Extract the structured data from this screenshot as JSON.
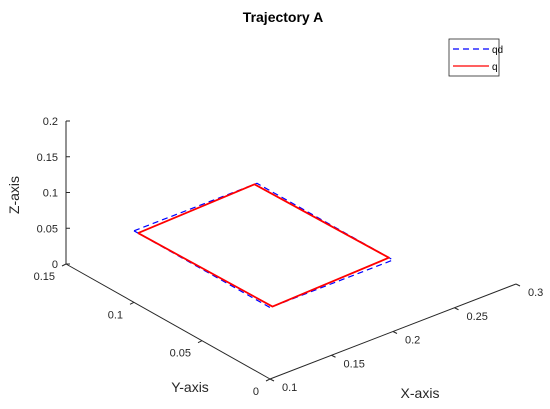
{
  "chart_data": {
    "type": "line",
    "title": "Trajectory A",
    "xlabel": "X-axis",
    "ylabel": "Y-axis",
    "zlabel": "Z-axis",
    "xlim": [
      0.1,
      0.3
    ],
    "ylim": [
      0,
      0.15
    ],
    "zlim": [
      0,
      0.2
    ],
    "x_ticks": [
      "0.1",
      "0.15",
      "0.2",
      "0.25",
      "0.3"
    ],
    "y_ticks": [
      "0",
      "0.05",
      "0.1",
      "0.15"
    ],
    "z_ticks": [
      "0",
      "0.05",
      "0.1",
      "0.15",
      "0.2"
    ],
    "legend_position": "top-right",
    "grid": false,
    "series": [
      {
        "name": "qd",
        "color": "#0000ff",
        "style": "dashed",
        "points": [
          [
            0.1,
            0.1,
            0.1
          ],
          [
            0.2,
            0.1,
            0.1
          ],
          [
            0.2,
            0.0,
            0.1
          ],
          [
            0.1,
            0.0,
            0.1
          ],
          [
            0.1,
            0.1,
            0.1
          ]
        ]
      },
      {
        "name": "q",
        "color": "#ff0000",
        "style": "solid",
        "points": [
          [
            0.1,
            0.097,
            0.1
          ],
          [
            0.198,
            0.1,
            0.1
          ],
          [
            0.2,
            0.003,
            0.1
          ],
          [
            0.102,
            0.0,
            0.1
          ],
          [
            0.1,
            0.097,
            0.1
          ]
        ]
      }
    ]
  }
}
